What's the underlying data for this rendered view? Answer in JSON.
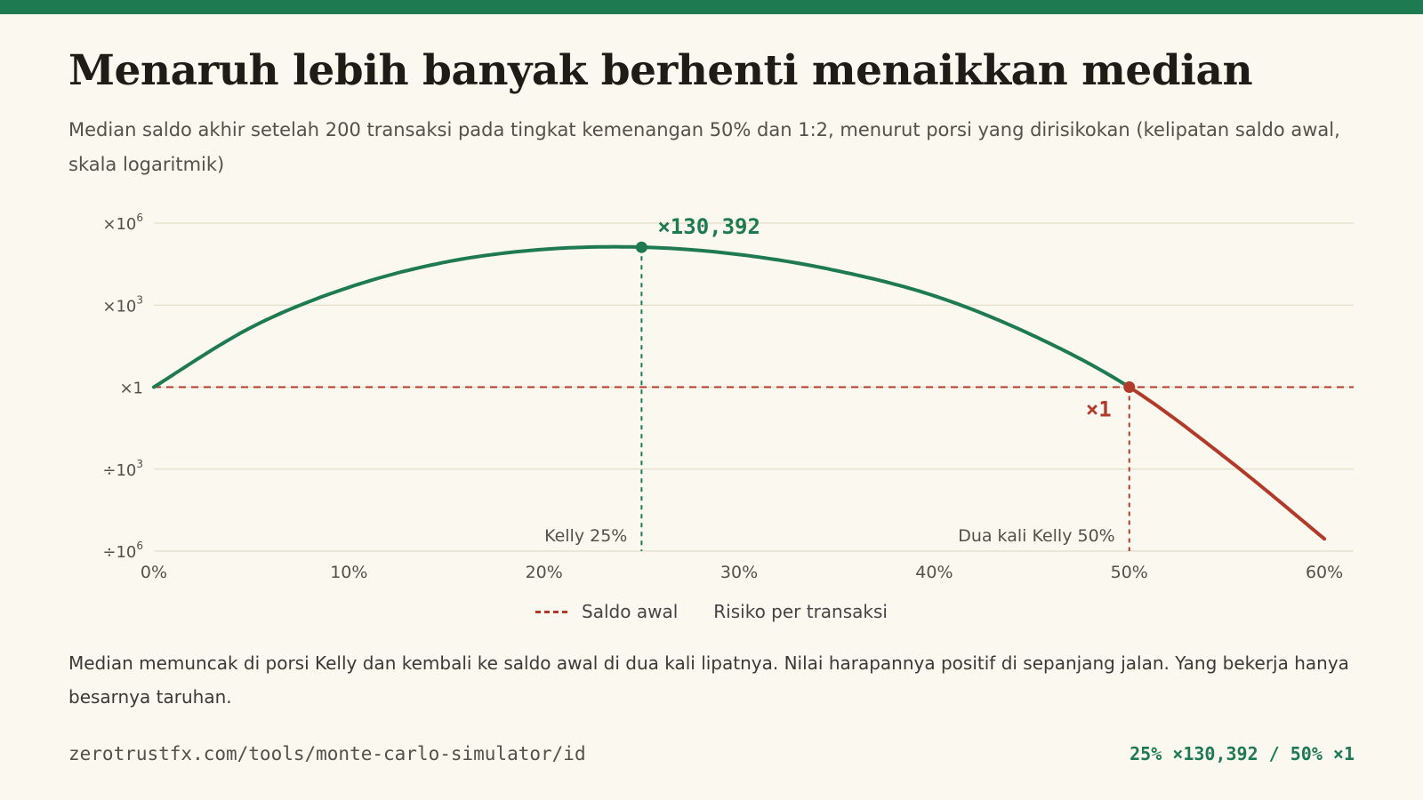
{
  "title": "Menaruh lebih banyak berhenti menaikkan median",
  "subtitle": "Median saldo akhir setelah 200 transaksi pada tingkat kemenangan 50% dan 1:2, menurut porsi yang dirisikokan (kelipatan saldo awal, skala logaritmik)",
  "legend": {
    "baseline_label": "Saldo awal",
    "series_label": "Risiko per transaksi"
  },
  "note": "Median memuncak di porsi Kelly dan kembali ke saldo awal di dua kali lipatnya. Nilai harapannya positif di sepanjang jalan. Yang bekerja hanya besarnya taruhan.",
  "footer": {
    "url": "zerotrustfx.com/tools/monte-carlo-simulator/id",
    "stat": "25% ×130,392 / 50% ×1"
  },
  "colors": {
    "positive": "#1e7a50",
    "negative": "#b23a2b",
    "grid": "#ddd8c0",
    "tick_text": "#555048"
  },
  "chart_data": {
    "type": "line",
    "title": "",
    "xlabel": "",
    "ylabel": "",
    "x_scale": "linear",
    "y_scale": "log",
    "xlim": [
      0,
      0.615
    ],
    "ylim_log10": [
      -6,
      6
    ],
    "x_ticks": [
      {
        "value": 0.0,
        "label": "0%"
      },
      {
        "value": 0.1,
        "label": "10%"
      },
      {
        "value": 0.2,
        "label": "20%"
      },
      {
        "value": 0.3,
        "label": "30%"
      },
      {
        "value": 0.4,
        "label": "40%"
      },
      {
        "value": 0.5,
        "label": "50%"
      },
      {
        "value": 0.6,
        "label": "60%"
      }
    ],
    "y_ticks": [
      {
        "log10": 6,
        "base": "×10",
        "exp": "6"
      },
      {
        "log10": 3,
        "base": "×10",
        "exp": "3"
      },
      {
        "log10": 0,
        "base": "×1",
        "exp": ""
      },
      {
        "log10": -3,
        "base": "÷10",
        "exp": "3"
      },
      {
        "log10": -6,
        "base": "÷10",
        "exp": "6"
      }
    ],
    "grid": true,
    "series": [
      {
        "name": "Risiko per transaksi",
        "x": [
          0.0,
          0.05,
          0.1,
          0.15,
          0.2,
          0.25,
          0.3,
          0.35,
          0.4,
          0.45,
          0.5,
          0.55,
          0.6
        ],
        "y_log10": [
          0.0,
          2.19,
          3.65,
          4.58,
          5.04,
          5.12,
          4.85,
          4.26,
          3.34,
          1.91,
          0.0,
          -2.62,
          -5.55
        ]
      }
    ],
    "baseline": {
      "label": "Saldo awal",
      "y_log10": 0
    },
    "markers": [
      {
        "x": 0.25,
        "y_log10": 5.115,
        "value_label": "×130,392",
        "ref_label": "Kelly 25%",
        "color": "positive"
      },
      {
        "x": 0.5,
        "y_log10": 0,
        "value_label": "×1",
        "ref_label": "Dua kali Kelly 50%",
        "color": "negative"
      }
    ],
    "legend_position": "bottom-center"
  }
}
